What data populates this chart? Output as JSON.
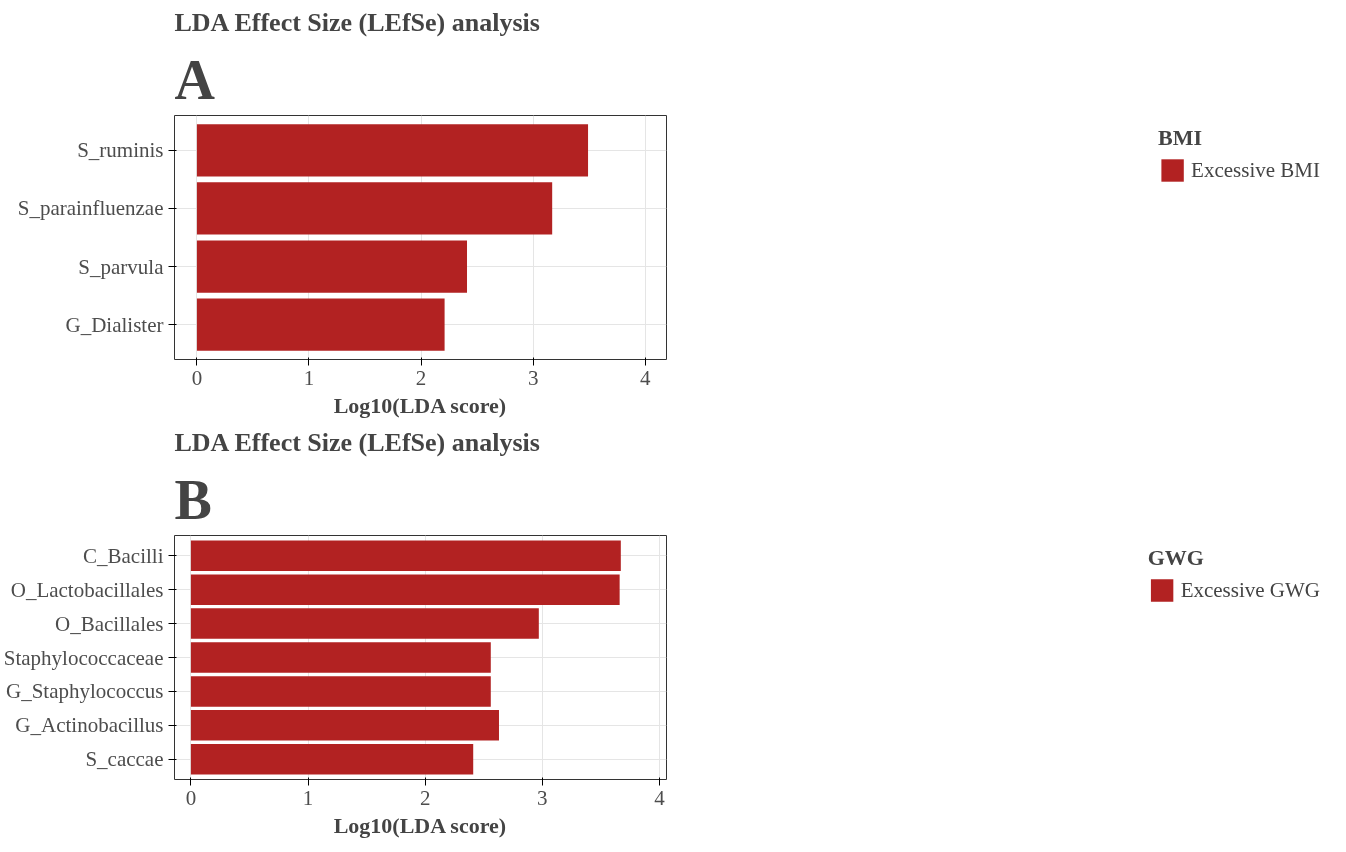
{
  "chart_data": [
    {
      "type": "bar",
      "orientation": "horizontal",
      "title": "LDA Effect Size (LEfSe) analysis",
      "xlabel": "Log10(LDA score)",
      "legend_title": "BMI",
      "annotations": [
        "A"
      ],
      "categories": [
        "S_ruminis",
        "S_parainfluenzae",
        "S_parvula",
        "G_Dialister"
      ],
      "series": [
        {
          "name": "Excessive BMI",
          "color": "#b22222",
          "values": [
            3.49,
            3.17,
            2.41,
            2.21
          ]
        }
      ],
      "xlim": [
        -0.2,
        4.19
      ],
      "xticks": [
        0,
        1,
        2,
        3,
        4
      ],
      "grid": true,
      "legend": "right"
    },
    {
      "type": "bar",
      "orientation": "horizontal",
      "title": "LDA Effect Size (LEfSe) analysis",
      "xlabel": "Log10(LDA score)",
      "legend_title": "GWG",
      "annotations": [
        "B"
      ],
      "categories": [
        "C_Bacilli",
        "O_Lactobacillales",
        "O_Bacillales",
        "Staphylococcaceae",
        "G_Staphylococcus",
        "G_Actinobacillus",
        "S_caccae"
      ],
      "series": [
        {
          "name": "Excessive GWG",
          "color": "#b22222",
          "values": [
            3.67,
            3.66,
            2.97,
            2.56,
            2.56,
            2.63,
            2.41
          ]
        }
      ],
      "xlim": [
        -0.14,
        4.06
      ],
      "xticks": [
        0,
        1,
        2,
        3,
        4
      ],
      "grid": true,
      "legend": "right"
    }
  ]
}
